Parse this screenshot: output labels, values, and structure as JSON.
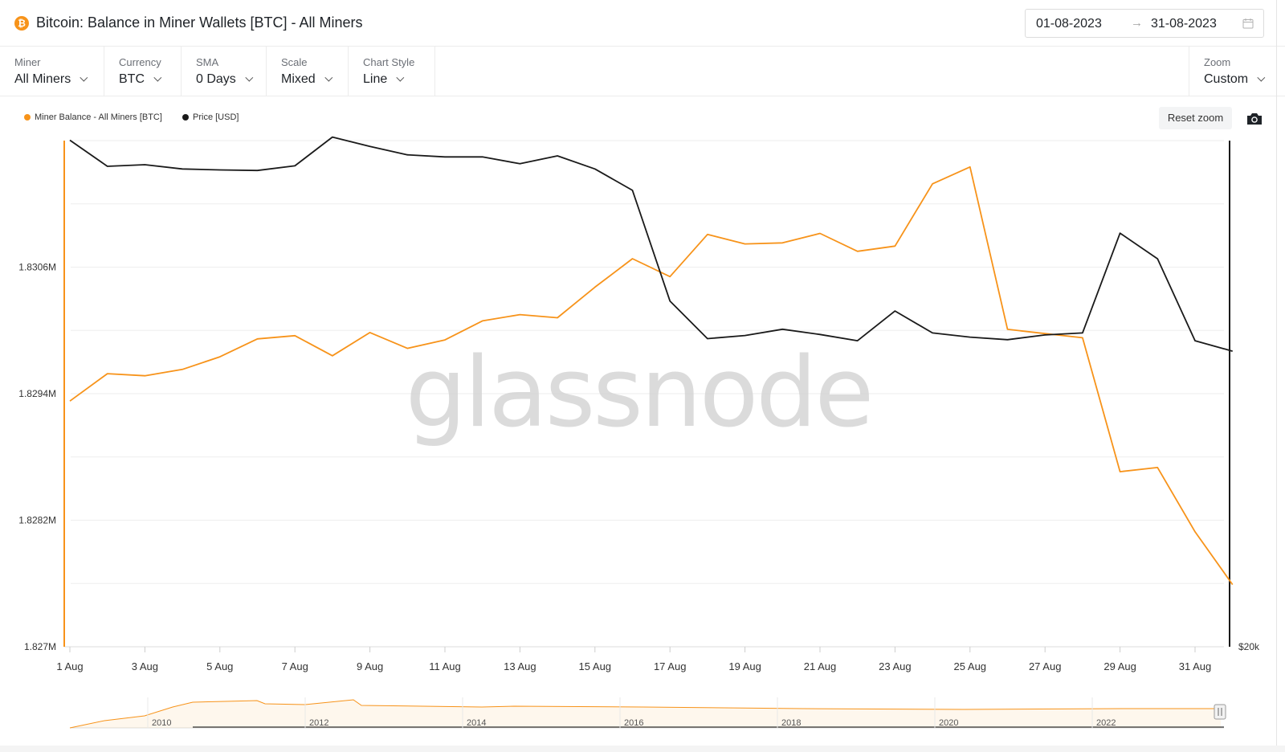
{
  "header": {
    "coin_glyph": "₿",
    "title": "Bitcoin: Balance in Miner Wallets [BTC] - All Miners",
    "date_start": "01-08-2023",
    "date_arrow": "→",
    "date_end": "31-08-2023"
  },
  "controls": [
    {
      "label": "Miner",
      "value": "All Miners"
    },
    {
      "label": "Currency",
      "value": "BTC"
    },
    {
      "label": "SMA",
      "value": "0 Days"
    },
    {
      "label": "Scale",
      "value": "Mixed"
    },
    {
      "label": "Chart Style",
      "value": "Line"
    }
  ],
  "zoom": {
    "label": "Zoom",
    "value": "Custom"
  },
  "toolbar": {
    "reset_zoom": "Reset zoom",
    "camera_icon": "camera-icon"
  },
  "watermark": "glassnode",
  "colors": {
    "balance": "#f7931a",
    "price": "#1a1a1a",
    "grid": "#eeeeee",
    "navigator": "#f7931a"
  },
  "chart_data": {
    "type": "line",
    "legend": [
      {
        "name": "Miner Balance - All Miners [BTC]",
        "color": "#f7931a"
      },
      {
        "name": "Price [USD]",
        "color": "#1a1a1a"
      }
    ],
    "legend_position": "top-left",
    "grid": true,
    "x": [
      "2023-08-01",
      "2023-08-02",
      "2023-08-03",
      "2023-08-04",
      "2023-08-05",
      "2023-08-06",
      "2023-08-07",
      "2023-08-08",
      "2023-08-09",
      "2023-08-10",
      "2023-08-11",
      "2023-08-12",
      "2023-08-13",
      "2023-08-14",
      "2023-08-15",
      "2023-08-16",
      "2023-08-17",
      "2023-08-18",
      "2023-08-19",
      "2023-08-20",
      "2023-08-21",
      "2023-08-22",
      "2023-08-23",
      "2023-08-24",
      "2023-08-25",
      "2023-08-26",
      "2023-08-27",
      "2023-08-28",
      "2023-08-29",
      "2023-08-30",
      "2023-08-31",
      "2023-09-01"
    ],
    "x_tick_labels": [
      "1 Aug",
      "3 Aug",
      "5 Aug",
      "7 Aug",
      "9 Aug",
      "11 Aug",
      "13 Aug",
      "15 Aug",
      "17 Aug",
      "19 Aug",
      "21 Aug",
      "23 Aug",
      "25 Aug",
      "27 Aug",
      "29 Aug",
      "31 Aug"
    ],
    "y_left": {
      "ticks": [
        1827000,
        1828200,
        1829400,
        1830600
      ],
      "tick_labels": [
        "1.827M",
        "1.8282M",
        "1.8294M",
        "1.8306M"
      ],
      "range": [
        1827000,
        1831800
      ]
    },
    "y_right": {
      "ticks": [
        20000
      ],
      "tick_labels": [
        "$20k"
      ]
    },
    "series": [
      {
        "name": "Miner Balance - All Miners [BTC]",
        "axis": "left",
        "values": [
          1829330,
          1829590,
          1829570,
          1829630,
          1829750,
          1829920,
          1829950,
          1829760,
          1829980,
          1829830,
          1829910,
          1830090,
          1830150,
          1830120,
          1830410,
          1830680,
          1830510,
          1830910,
          1830820,
          1830830,
          1830920,
          1830750,
          1830800,
          1831390,
          1831550,
          1830010,
          1829970,
          1829930,
          1828660,
          1828700,
          1828090,
          1827590
        ]
      },
      {
        "name": "Price [USD]",
        "axis": "right",
        "values": [
          29700,
          29200,
          29230,
          29150,
          29130,
          29120,
          29210,
          29760,
          29580,
          29420,
          29380,
          29380,
          29250,
          29400,
          29150,
          28740,
          26620,
          25900,
          25960,
          26080,
          25980,
          25860,
          26430,
          26010,
          25930,
          25880,
          25970,
          26010,
          27920,
          27430,
          25860,
          25660
        ]
      }
    ],
    "navigator": {
      "tick_labels": [
        "2010",
        "2012",
        "2014",
        "2016",
        "2018",
        "2020",
        "2022"
      ]
    }
  }
}
